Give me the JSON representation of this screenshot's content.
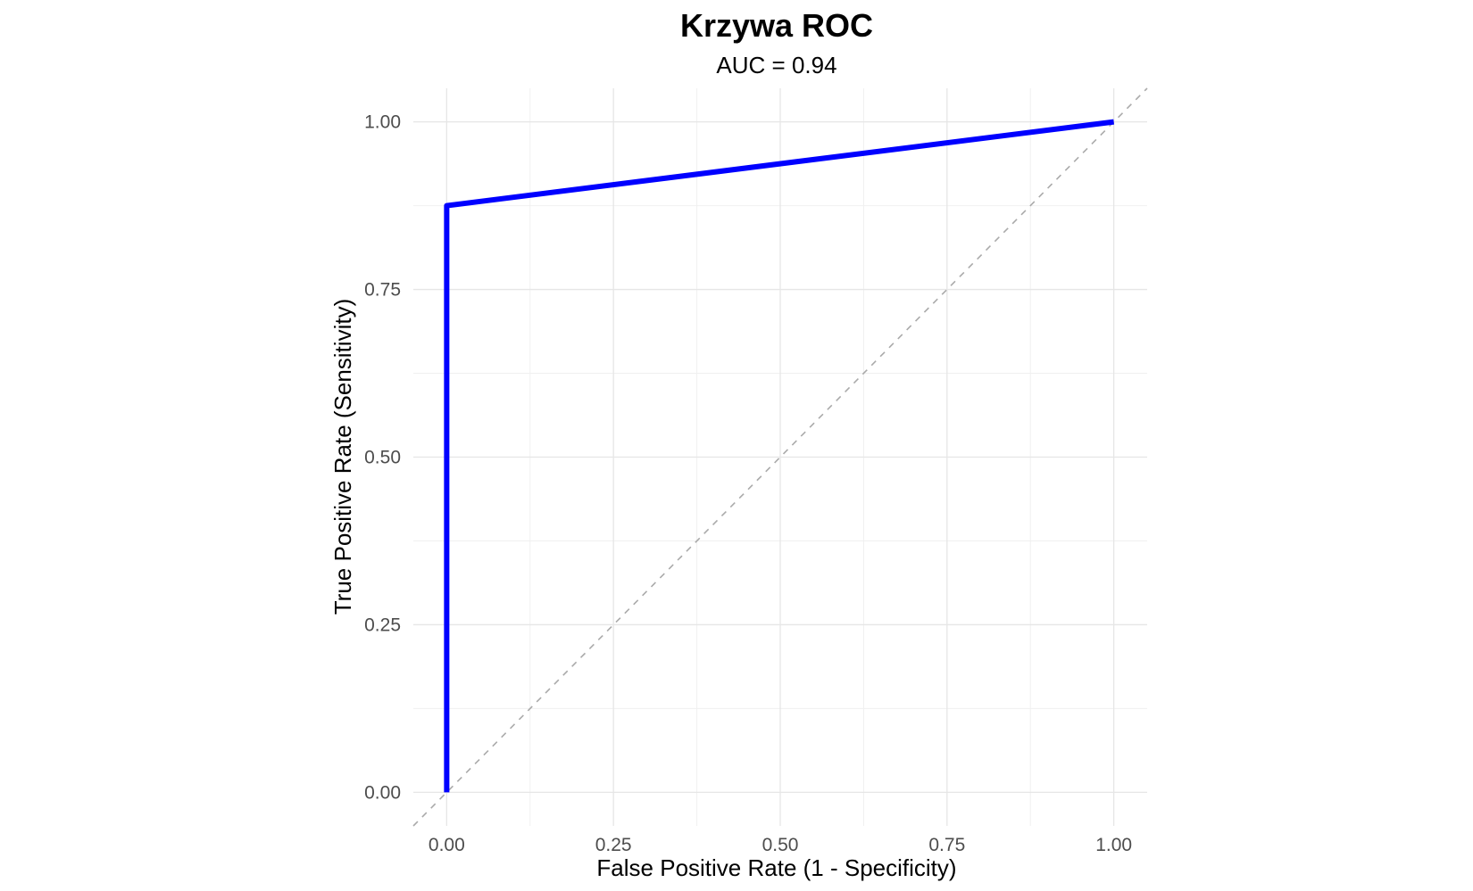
{
  "chart_data": {
    "type": "line",
    "title": "Krzywa ROC",
    "subtitle": "AUC = 0.94",
    "xlabel": "False Positive Rate (1 - Specificity)",
    "ylabel": "True Positive Rate (Sensitivity)",
    "xlim": [
      -0.05,
      1.05
    ],
    "ylim": [
      -0.05,
      1.05
    ],
    "x_ticks": [
      "0.00",
      "0.25",
      "0.50",
      "0.75",
      "1.00"
    ],
    "y_ticks": [
      "0.00",
      "0.25",
      "0.50",
      "0.75",
      "1.00"
    ],
    "grid": true,
    "series": [
      {
        "x": [
          0.0,
          0.0,
          1.0
        ],
        "y": [
          0.0,
          0.875,
          1.0
        ],
        "color": "#0000ff"
      }
    ],
    "reference_line": {
      "x": [
        -0.05,
        1.05
      ],
      "y": [
        -0.05,
        1.05
      ],
      "color": "#aaaaaa",
      "style": "dashed"
    }
  }
}
